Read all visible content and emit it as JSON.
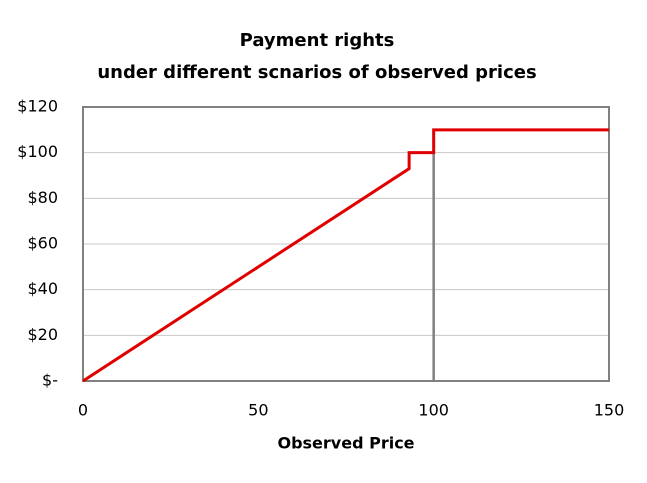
{
  "chart_data": {
    "type": "line",
    "title": "Payment rights",
    "subtitle": "under different scnarios of observed prices",
    "x_label": "Observed Price",
    "series": [
      {
        "color": "#e00000",
        "x": [
          0,
          93,
          93,
          100,
          100,
          150
        ],
        "values": [
          0,
          93,
          100,
          100,
          110,
          110
        ]
      },
      {
        "color": "#808080",
        "x": [
          100,
          100
        ],
        "values": [
          0,
          100
        ]
      }
    ],
    "xlim": [
      0,
      150
    ],
    "xticks": [
      0,
      50,
      100,
      150
    ],
    "ylim": [
      0,
      120
    ],
    "yticks": [
      {
        "value": 0,
        "label": "$-"
      },
      {
        "value": 20,
        "label": "$20"
      },
      {
        "value": 40,
        "label": "$40"
      },
      {
        "value": 60,
        "label": "$60"
      },
      {
        "value": 80,
        "label": "$80"
      },
      {
        "value": 100,
        "label": "$100"
      },
      {
        "value": 120,
        "label": "$120"
      }
    ],
    "grid": true
  }
}
